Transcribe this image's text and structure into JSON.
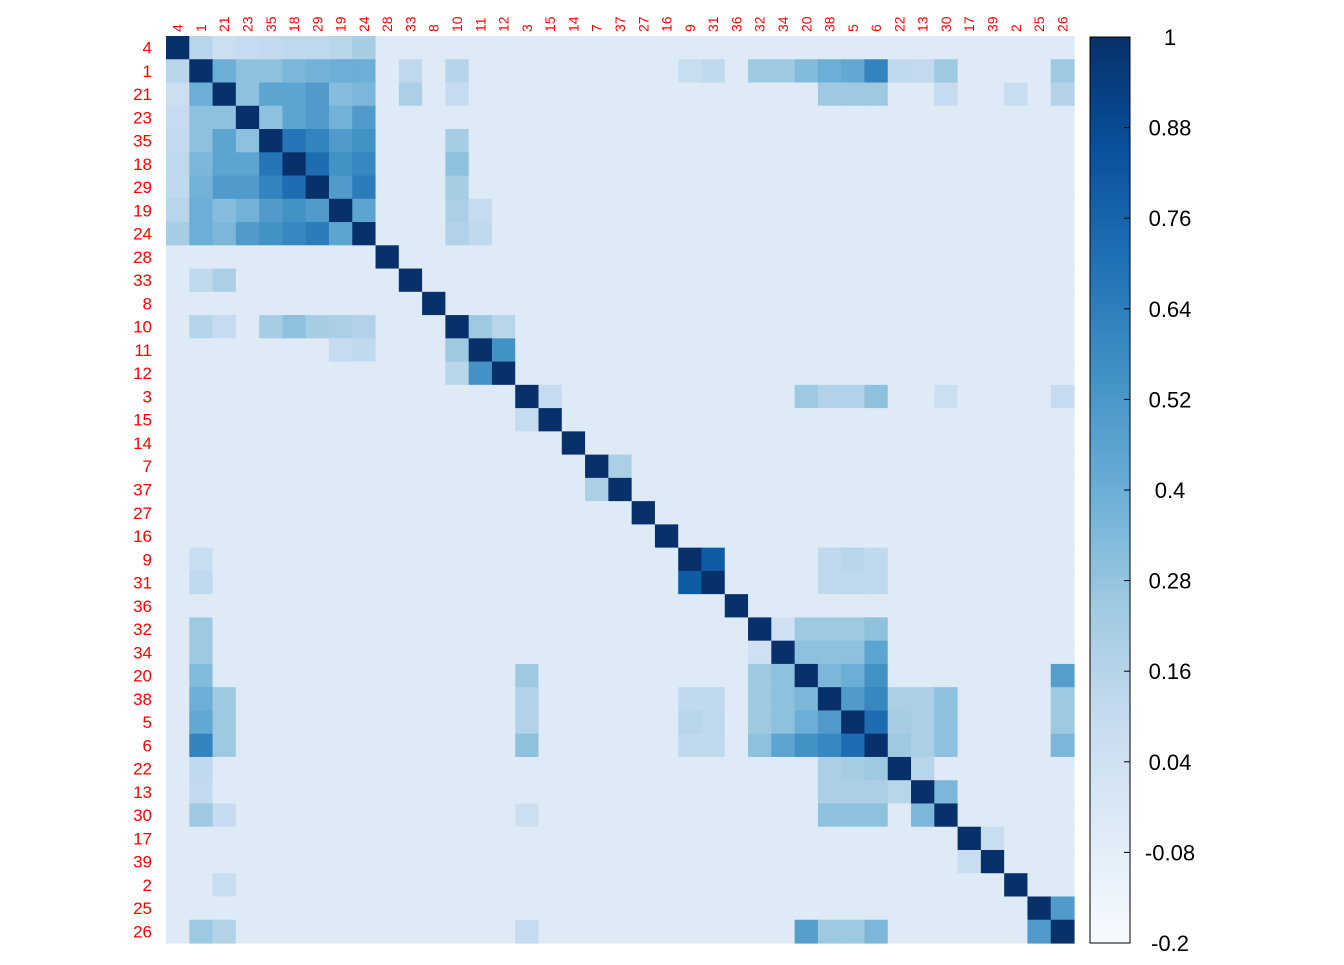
{
  "chart_data": {
    "type": "heatmap",
    "title": "",
    "labels": [
      "4",
      "1",
      "21",
      "23",
      "35",
      "18",
      "29",
      "19",
      "24",
      "28",
      "33",
      "8",
      "10",
      "11",
      "12",
      "3",
      "15",
      "14",
      "7",
      "37",
      "27",
      "16",
      "9",
      "31",
      "36",
      "32",
      "34",
      "20",
      "38",
      "5",
      "6",
      "22",
      "13",
      "30",
      "17",
      "39",
      "2",
      "25",
      "26"
    ],
    "groups": [
      [
        "4",
        "1",
        "21",
        "23",
        "35",
        "18",
        "29",
        "19",
        "24"
      ],
      [
        "10",
        "11",
        "12"
      ],
      [
        "7",
        "37"
      ],
      [
        "9",
        "31"
      ],
      [
        "32",
        "34",
        "20",
        "38",
        "5",
        "6"
      ],
      [
        "22",
        "13",
        "30"
      ],
      [
        "25",
        "26"
      ]
    ],
    "pairs": [
      [
        "4",
        "1",
        0.15
      ],
      [
        "4",
        "21",
        0.06
      ],
      [
        "4",
        "23",
        0.1
      ],
      [
        "4",
        "35",
        0.11
      ],
      [
        "4",
        "18",
        0.13
      ],
      [
        "4",
        "29",
        0.13
      ],
      [
        "4",
        "19",
        0.15
      ],
      [
        "4",
        "24",
        0.22
      ],
      [
        "1",
        "21",
        0.4
      ],
      [
        "1",
        "23",
        0.3
      ],
      [
        "1",
        "35",
        0.3
      ],
      [
        "1",
        "18",
        0.35
      ],
      [
        "1",
        "29",
        0.38
      ],
      [
        "1",
        "19",
        0.4
      ],
      [
        "1",
        "24",
        0.4
      ],
      [
        "1",
        "33",
        0.12
      ],
      [
        "1",
        "10",
        0.16
      ],
      [
        "1",
        "9",
        0.08
      ],
      [
        "1",
        "31",
        0.12
      ],
      [
        "1",
        "32",
        0.25
      ],
      [
        "1",
        "34",
        0.25
      ],
      [
        "1",
        "20",
        0.33
      ],
      [
        "1",
        "38",
        0.4
      ],
      [
        "1",
        "5",
        0.43
      ],
      [
        "1",
        "6",
        0.62
      ],
      [
        "1",
        "22",
        0.12
      ],
      [
        "1",
        "13",
        0.11
      ],
      [
        "1",
        "30",
        0.25
      ],
      [
        "1",
        "26",
        0.25
      ],
      [
        "21",
        "23",
        0.3
      ],
      [
        "21",
        "35",
        0.45
      ],
      [
        "21",
        "18",
        0.45
      ],
      [
        "21",
        "29",
        0.5
      ],
      [
        "21",
        "19",
        0.32
      ],
      [
        "21",
        "24",
        0.35
      ],
      [
        "21",
        "33",
        0.2
      ],
      [
        "21",
        "10",
        0.1
      ],
      [
        "21",
        "38",
        0.25
      ],
      [
        "21",
        "5",
        0.25
      ],
      [
        "21",
        "6",
        0.25
      ],
      [
        "21",
        "30",
        0.1
      ],
      [
        "21",
        "2",
        0.08
      ],
      [
        "21",
        "26",
        0.17
      ],
      [
        "23",
        "35",
        0.3
      ],
      [
        "23",
        "18",
        0.45
      ],
      [
        "23",
        "29",
        0.5
      ],
      [
        "23",
        "19",
        0.38
      ],
      [
        "23",
        "24",
        0.5
      ],
      [
        "35",
        "18",
        0.68
      ],
      [
        "35",
        "29",
        0.62
      ],
      [
        "35",
        "19",
        0.5
      ],
      [
        "35",
        "24",
        0.55
      ],
      [
        "35",
        "10",
        0.22
      ],
      [
        "18",
        "29",
        0.72
      ],
      [
        "18",
        "19",
        0.55
      ],
      [
        "18",
        "24",
        0.6
      ],
      [
        "18",
        "10",
        0.3
      ],
      [
        "29",
        "19",
        0.5
      ],
      [
        "29",
        "24",
        0.65
      ],
      [
        "29",
        "10",
        0.22
      ],
      [
        "19",
        "24",
        0.45
      ],
      [
        "19",
        "10",
        0.2
      ],
      [
        "19",
        "11",
        0.1
      ],
      [
        "24",
        "10",
        0.18
      ],
      [
        "24",
        "11",
        0.12
      ],
      [
        "10",
        "11",
        0.25
      ],
      [
        "10",
        "12",
        0.15
      ],
      [
        "11",
        "12",
        0.55
      ],
      [
        "3",
        "15",
        0.1
      ],
      [
        "3",
        "20",
        0.25
      ],
      [
        "3",
        "38",
        0.18
      ],
      [
        "3",
        "5",
        0.18
      ],
      [
        "3",
        "6",
        0.3
      ],
      [
        "3",
        "30",
        0.06
      ],
      [
        "3",
        "26",
        0.1
      ],
      [
        "7",
        "37",
        0.2
      ],
      [
        "9",
        "31",
        0.8
      ],
      [
        "9",
        "38",
        0.12
      ],
      [
        "9",
        "5",
        0.15
      ],
      [
        "9",
        "6",
        0.12
      ],
      [
        "31",
        "38",
        0.12
      ],
      [
        "31",
        "5",
        0.13
      ],
      [
        "31",
        "6",
        0.12
      ],
      [
        "32",
        "34",
        0.05
      ],
      [
        "32",
        "20",
        0.25
      ],
      [
        "32",
        "38",
        0.25
      ],
      [
        "32",
        "5",
        0.25
      ],
      [
        "32",
        "6",
        0.3
      ],
      [
        "34",
        "20",
        0.3
      ],
      [
        "34",
        "38",
        0.3
      ],
      [
        "34",
        "5",
        0.3
      ],
      [
        "34",
        "6",
        0.45
      ],
      [
        "20",
        "38",
        0.35
      ],
      [
        "20",
        "5",
        0.4
      ],
      [
        "20",
        "6",
        0.55
      ],
      [
        "20",
        "26",
        0.48
      ],
      [
        "38",
        "5",
        0.5
      ],
      [
        "38",
        "6",
        0.6
      ],
      [
        "38",
        "22",
        0.2
      ],
      [
        "38",
        "13",
        0.2
      ],
      [
        "38",
        "30",
        0.3
      ],
      [
        "38",
        "26",
        0.25
      ],
      [
        "5",
        "6",
        0.72
      ],
      [
        "5",
        "22",
        0.22
      ],
      [
        "5",
        "13",
        0.2
      ],
      [
        "5",
        "30",
        0.3
      ],
      [
        "5",
        "26",
        0.25
      ],
      [
        "6",
        "22",
        0.25
      ],
      [
        "6",
        "13",
        0.2
      ],
      [
        "6",
        "30",
        0.3
      ],
      [
        "6",
        "26",
        0.35
      ],
      [
        "22",
        "13",
        0.15
      ],
      [
        "13",
        "30",
        0.35
      ],
      [
        "17",
        "39",
        0.08
      ],
      [
        "25",
        "26",
        0.5
      ]
    ],
    "default_value": -0.05,
    "colorbar": {
      "range": [
        -0.2,
        1
      ],
      "ticks": [
        "1",
        "0.88",
        "0.76",
        "0.64",
        "0.52",
        "0.4",
        "0.28",
        "0.16",
        "0.04",
        "-0.08",
        "-0.2"
      ],
      "colors": [
        "#F7FBFF",
        "#DEEBF7",
        "#C6DBEF",
        "#9ECAE1",
        "#6BAED6",
        "#4292C6",
        "#2171B5",
        "#08519C",
        "#08306B"
      ]
    },
    "label_color": "#FF0000",
    "grid": false,
    "legend": "colorbar-right"
  }
}
